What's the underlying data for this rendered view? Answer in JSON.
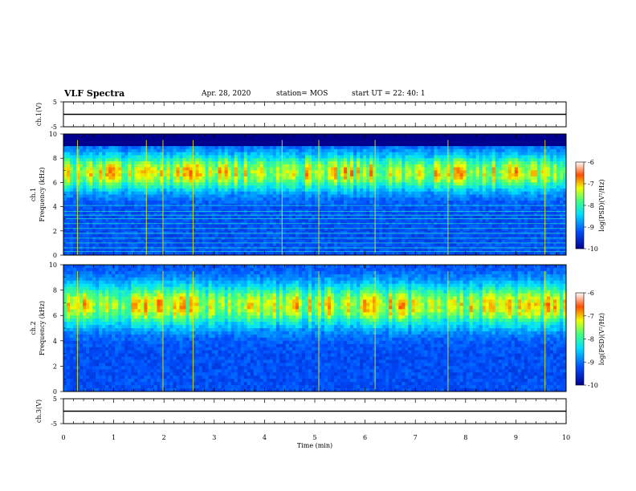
{
  "header": {
    "title": "VLF Spectra",
    "date": "Apr. 28, 2020",
    "station": "station= MOS",
    "start": "start UT = 22: 40: 1"
  },
  "chart_data": [
    {
      "type": "line",
      "panel": "ch1-voltage",
      "ylabel": "ch.1(V)",
      "ylim": [
        -5,
        5
      ],
      "y_ticks": [
        "5",
        "-5"
      ],
      "x": [
        0,
        10
      ],
      "values": [
        0,
        0
      ]
    },
    {
      "type": "heatmap",
      "panel": "ch1-spectrogram",
      "ylabel_top": "ch.1",
      "ylabel": "Frequency (kHz)",
      "ylim": [
        0,
        10
      ],
      "y_ticks": [
        "0",
        "2",
        "4",
        "6",
        "8",
        "10"
      ],
      "colorbar": {
        "label": "log(PSD)(V²/Hz)",
        "ticks": [
          "-6",
          "-7",
          "-8",
          "-9",
          "-10"
        ],
        "range": [
          -10,
          -6
        ]
      },
      "band_center_khz": 6.8,
      "band_spread_khz": 1.5,
      "cutoff_khz": 9.0,
      "lines_khz": [
        0.3,
        0.6,
        1.0,
        1.4,
        1.8,
        2.2,
        2.6,
        3.0,
        3.3,
        3.6,
        4.1
      ],
      "impulses_min": [
        0.28,
        1.65,
        1.98,
        2.58,
        4.35,
        5.08,
        6.2,
        7.65,
        9.58
      ]
    },
    {
      "type": "heatmap",
      "panel": "ch2-spectrogram",
      "ylabel_top": "ch.2",
      "ylabel": "Frequency (kHz)",
      "ylim": [
        0,
        10
      ],
      "y_ticks": [
        "0",
        "2",
        "4",
        "6",
        "8",
        "10"
      ],
      "colorbar": {
        "label": "log(PSD)(V²/Hz)",
        "ticks": [
          "-6",
          "-7",
          "-8",
          "-9",
          "-10"
        ],
        "range": [
          -10,
          -6
        ]
      },
      "band_center_khz": 6.8,
      "band_spread_khz": 1.7,
      "impulses_min": [
        0.28,
        1.98,
        2.58,
        5.08,
        6.2,
        7.65,
        9.58
      ]
    },
    {
      "type": "line",
      "panel": "ch3-voltage",
      "ylabel": "ch.3(V)",
      "ylim": [
        -5,
        5
      ],
      "y_ticks": [
        "5",
        "-5"
      ],
      "x": [
        0,
        10
      ],
      "values": [
        0,
        0
      ]
    }
  ],
  "x_axis": {
    "label": "Time (min)",
    "ticks": [
      "0",
      "1",
      "2",
      "3",
      "4",
      "5",
      "6",
      "7",
      "8",
      "9",
      "10"
    ],
    "range": [
      0,
      10
    ]
  }
}
